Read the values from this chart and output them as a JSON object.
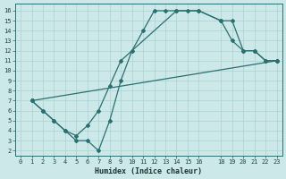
{
  "xlabel": "Humidex (Indice chaleur)",
  "bg_color": "#cce8e8",
  "line_color": "#2a7070",
  "grid_color": "#aad0d0",
  "xlim": [
    -0.5,
    23.5
  ],
  "ylim": [
    1.5,
    16.7
  ],
  "xticks": [
    0,
    1,
    2,
    3,
    4,
    5,
    6,
    7,
    8,
    9,
    10,
    11,
    12,
    13,
    14,
    15,
    16,
    18,
    19,
    20,
    21,
    22,
    23
  ],
  "yticks": [
    2,
    3,
    4,
    5,
    6,
    7,
    8,
    9,
    10,
    11,
    12,
    13,
    14,
    15,
    16
  ],
  "line1_x": [
    1,
    2,
    3,
    4,
    5,
    6,
    7,
    8,
    9,
    10,
    11,
    12,
    13,
    14,
    15,
    16,
    18,
    19,
    20,
    21,
    22,
    23
  ],
  "line1_y": [
    7,
    6,
    5,
    4,
    3,
    3,
    2,
    5,
    9,
    12,
    14,
    16,
    16,
    16,
    16,
    16,
    15,
    15,
    12,
    12,
    11,
    11
  ],
  "line2_x": [
    1,
    2,
    3,
    4,
    5,
    6,
    7,
    8,
    9,
    14,
    16,
    18,
    19,
    20,
    21,
    22,
    23
  ],
  "line2_y": [
    7,
    6,
    5,
    4,
    3.5,
    4.5,
    6,
    8.5,
    11,
    16,
    16,
    15,
    13,
    12,
    12,
    11,
    11
  ],
  "line3_x": [
    1,
    23
  ],
  "line3_y": [
    7,
    11
  ]
}
